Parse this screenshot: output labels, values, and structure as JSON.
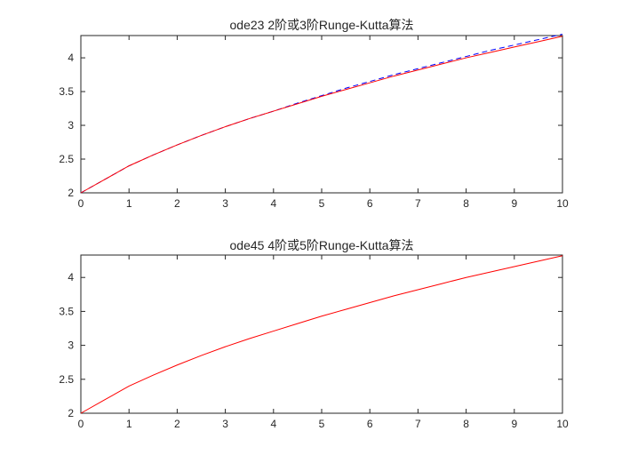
{
  "figure": {
    "background": "#ffffff",
    "axes_color": "#262626"
  },
  "chart_data": [
    {
      "type": "line",
      "title": "ode23 2阶或3阶Runge-Kutta算法",
      "xlabel": "",
      "ylabel": "",
      "xlim": [
        0,
        10
      ],
      "ylim": [
        2,
        4.33
      ],
      "xticks": [
        0,
        1,
        2,
        3,
        4,
        5,
        6,
        7,
        8,
        9,
        10
      ],
      "yticks": [
        2,
        2.5,
        3,
        3.5,
        4
      ],
      "xtick_labels": [
        "0",
        "1",
        "2",
        "3",
        "4",
        "5",
        "6",
        "7",
        "8",
        "9",
        "10"
      ],
      "ytick_labels": [
        "2",
        "2.5",
        "3",
        "3.5",
        "4"
      ],
      "grid": false,
      "series": [
        {
          "color": "#0000ff",
          "line_style": "dashed",
          "x": [
            0,
            0.5,
            1,
            1.5,
            2,
            2.5,
            3,
            3.5,
            4,
            4.5,
            5,
            5.5,
            6,
            6.5,
            7,
            7.5,
            8,
            8.5,
            9,
            9.5,
            10
          ],
          "y": [
            2.0,
            2.2,
            2.4,
            2.56,
            2.71,
            2.85,
            2.98,
            3.1,
            3.21,
            3.33,
            3.44,
            3.55,
            3.65,
            3.75,
            3.84,
            3.93,
            4.02,
            4.11,
            4.19,
            4.27,
            4.35
          ]
        },
        {
          "color": "#ff0000",
          "line_style": "solid",
          "x": [
            0,
            0.5,
            1,
            1.5,
            2,
            2.5,
            3,
            3.5,
            4,
            4.5,
            5,
            5.5,
            6,
            6.5,
            7,
            7.5,
            8,
            8.5,
            9,
            9.5,
            10
          ],
          "y": [
            2.0,
            2.2,
            2.4,
            2.56,
            2.71,
            2.85,
            2.98,
            3.1,
            3.21,
            3.32,
            3.43,
            3.53,
            3.63,
            3.73,
            3.82,
            3.91,
            4.0,
            4.08,
            4.16,
            4.24,
            4.32
          ]
        }
      ]
    },
    {
      "type": "line",
      "title": "ode45 4阶或5阶Runge-Kutta算法",
      "xlabel": "",
      "ylabel": "",
      "xlim": [
        0,
        10
      ],
      "ylim": [
        2,
        4.33
      ],
      "xticks": [
        0,
        1,
        2,
        3,
        4,
        5,
        6,
        7,
        8,
        9,
        10
      ],
      "yticks": [
        2,
        2.5,
        3,
        3.5,
        4
      ],
      "xtick_labels": [
        "0",
        "1",
        "2",
        "3",
        "4",
        "5",
        "6",
        "7",
        "8",
        "9",
        "10"
      ],
      "ytick_labels": [
        "2",
        "2.5",
        "3",
        "3.5",
        "4"
      ],
      "grid": false,
      "series": [
        {
          "color": "#ff0000",
          "line_style": "solid",
          "x": [
            0,
            0.5,
            1,
            1.5,
            2,
            2.5,
            3,
            3.5,
            4,
            4.5,
            5,
            5.5,
            6,
            6.5,
            7,
            7.5,
            8,
            8.5,
            9,
            9.5,
            10
          ],
          "y": [
            2.0,
            2.2,
            2.4,
            2.56,
            2.71,
            2.85,
            2.98,
            3.1,
            3.21,
            3.32,
            3.43,
            3.53,
            3.63,
            3.73,
            3.82,
            3.91,
            4.0,
            4.08,
            4.16,
            4.24,
            4.32
          ]
        }
      ]
    }
  ]
}
